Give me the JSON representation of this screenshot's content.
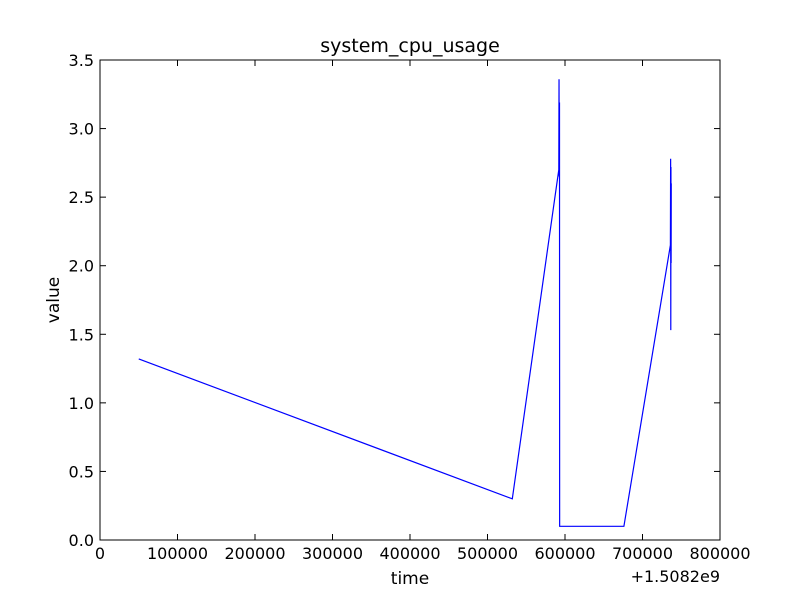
{
  "chart_data": {
    "type": "line",
    "title": "system_cpu_usage",
    "xlabel": "time",
    "ylabel": "value",
    "x_offset_label": "+1.5082e9",
    "xlim": [
      0,
      800000
    ],
    "ylim": [
      0.0,
      3.5
    ],
    "x_ticks": [
      0,
      100000,
      200000,
      300000,
      400000,
      500000,
      600000,
      700000,
      800000
    ],
    "x_tick_labels": [
      "0",
      "100000",
      "200000",
      "300000",
      "400000",
      "500000",
      "600000",
      "700000",
      "800000"
    ],
    "y_ticks": [
      0.0,
      0.5,
      1.0,
      1.5,
      2.0,
      2.5,
      3.0,
      3.5
    ],
    "y_tick_labels": [
      "0.0",
      "0.5",
      "1.0",
      "1.5",
      "2.0",
      "2.5",
      "3.0",
      "3.5"
    ],
    "grid": false,
    "line_color": "#0000ff",
    "series": [
      {
        "x": [
          50000,
          532000,
          592000,
          592300,
          592600,
          592900,
          593100,
          593300,
          593500,
          676000,
          736000,
          736300,
          736500,
          736700,
          736900,
          737100
        ],
        "y": [
          1.32,
          0.3,
          2.7,
          3.36,
          2.65,
          3.19,
          0.1,
          0.1,
          0.1,
          0.1,
          2.15,
          2.78,
          1.53,
          2.72,
          2.02,
          2.6
        ]
      }
    ]
  }
}
